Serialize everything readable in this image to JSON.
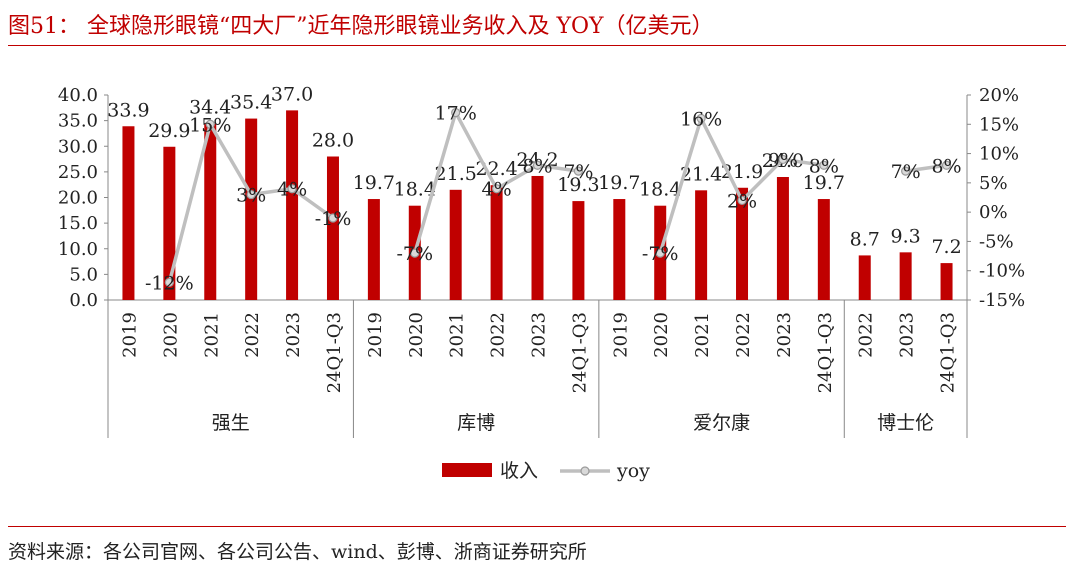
{
  "header": {
    "title": "图51： 全球隐形眼镜“四大厂”近年隐形眼镜业务收入及 YOY（亿美元）"
  },
  "footer": {
    "source": "资料来源：各公司官网、各公司公告、wind、彭博、浙商证券研究所"
  },
  "chart_data": {
    "type": "bar",
    "groups": [
      {
        "name": "强生",
        "categories": [
          "2019",
          "2020",
          "2021",
          "2022",
          "2023",
          "24Q1-Q3"
        ],
        "revenue": [
          33.9,
          29.9,
          34.4,
          35.4,
          37.0,
          28.0
        ],
        "yoy": [
          null,
          -12,
          15,
          3,
          4,
          -1
        ],
        "yoy_labels": [
          "",
          "-12%",
          "15%",
          "3%",
          "4%",
          "-1%"
        ]
      },
      {
        "name": "库博",
        "categories": [
          "2019",
          "2020",
          "2021",
          "2022",
          "2023",
          "24Q1-Q3"
        ],
        "revenue": [
          19.7,
          18.4,
          21.5,
          22.4,
          24.2,
          19.3
        ],
        "yoy": [
          null,
          -7,
          17,
          4,
          8,
          7
        ],
        "yoy_labels": [
          "",
          "-7%",
          "17%",
          "4%",
          "8%",
          "7%"
        ]
      },
      {
        "name": "爱尔康",
        "categories": [
          "2019",
          "2020",
          "2021",
          "2022",
          "2023",
          "24Q1-Q3"
        ],
        "revenue": [
          19.7,
          18.4,
          21.4,
          21.9,
          24.0,
          19.7
        ],
        "yoy": [
          null,
          -7,
          16,
          2,
          9,
          8
        ],
        "yoy_labels": [
          "",
          "-7%",
          "16%",
          "2%",
          "9%",
          "8%"
        ]
      },
      {
        "name": "博士伦",
        "categories": [
          "2022",
          "2023",
          "24Q1-Q3"
        ],
        "revenue": [
          8.7,
          9.3,
          7.2
        ],
        "yoy": [
          null,
          7,
          8
        ],
        "yoy_labels": [
          "",
          "7%",
          "8%"
        ]
      }
    ],
    "series": [
      {
        "name": "收入",
        "axis": "left",
        "color": "#c00000"
      },
      {
        "name": "yoy",
        "axis": "right",
        "color": "#bfbfbf"
      }
    ],
    "ylim_left": [
      0,
      40
    ],
    "yticks_left": [
      "0.0",
      "5.0",
      "10.0",
      "15.0",
      "20.0",
      "25.0",
      "30.0",
      "35.0",
      "40.0"
    ],
    "ylim_right": [
      -15,
      20
    ],
    "yticks_right": [
      "-15%",
      "-10%",
      "-5%",
      "0%",
      "5%",
      "10%",
      "15%",
      "20%"
    ],
    "legend_position": "bottom",
    "grid": false
  }
}
